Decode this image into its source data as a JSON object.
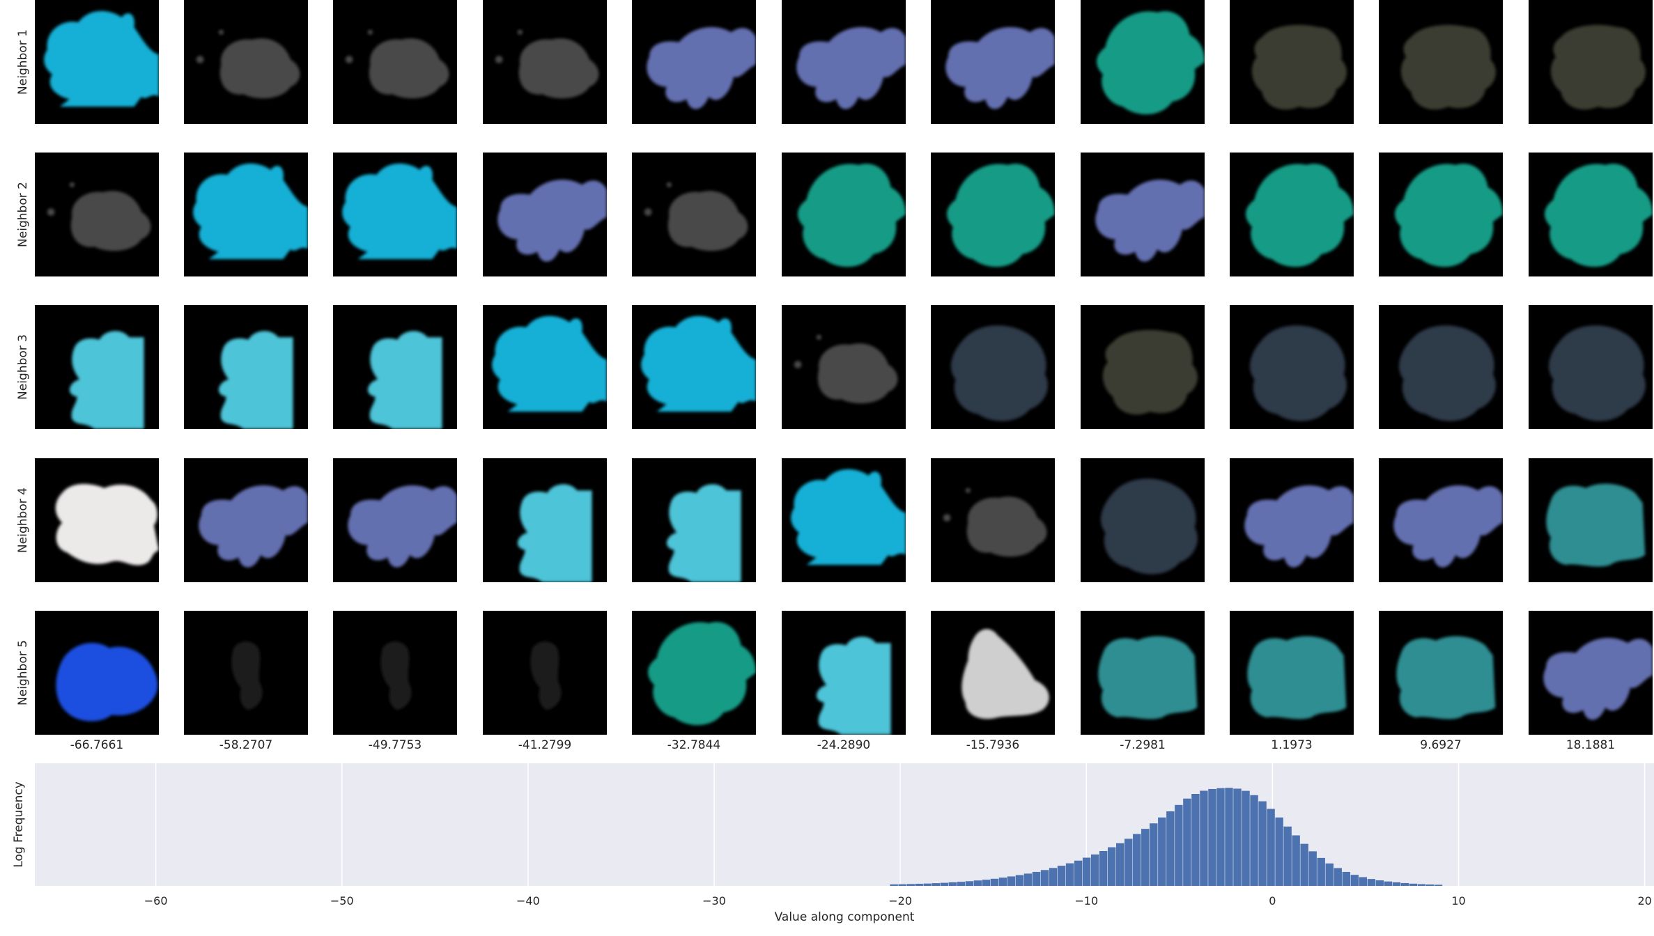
{
  "rows": [
    "Neighbor 1",
    "Neighbor 2",
    "Neighbor 3",
    "Neighbor 4",
    "Neighbor 5"
  ],
  "columns": [
    "-66.7661",
    "-58.2707",
    "-49.7753",
    "-41.2799",
    "-32.7844",
    "-24.2890",
    "-15.7936",
    "-7.2981",
    "1.1973",
    "9.6927",
    "18.1881"
  ],
  "tiles": [
    [
      "cyan-blob",
      "gray-smudge",
      "gray-smudge",
      "gray-smudge",
      "periwinkle-splat",
      "periwinkle-splat",
      "periwinkle-splat",
      "teal-leaf",
      "olive-blob",
      "olive-blob",
      "olive-blob"
    ],
    [
      "gray-smudge",
      "cyan-blob",
      "cyan-blob",
      "periwinkle-splat",
      "gray-smudge",
      "teal-leaf",
      "teal-leaf",
      "periwinkle-splat",
      "teal-leaf",
      "teal-leaf",
      "teal-leaf"
    ],
    [
      "lightblue-fish",
      "lightblue-fish",
      "lightblue-fish",
      "cyan-blob",
      "cyan-blob",
      "gray-smudge",
      "slate-blob",
      "olive-blob",
      "slate-blob",
      "slate-blob",
      "slate-blob"
    ],
    [
      "white-blob",
      "periwinkle-splat",
      "periwinkle-splat",
      "lightblue-fish",
      "lightblue-fish",
      "cyan-blob",
      "gray-smudge",
      "slate-blob",
      "periwinkle-splat",
      "periwinkle-splat",
      "aqua-patch"
    ],
    [
      "blue-shape",
      "dark-faint",
      "dark-faint",
      "dark-faint",
      "teal-leaf",
      "lightblue-fish",
      "silver-blob",
      "aqua-patch",
      "aqua-patch",
      "aqua-patch",
      "periwinkle-splat"
    ]
  ],
  "tile_colors": {
    "cyan-blob": "#16b0d6",
    "gray-smudge": "#4a4a4a",
    "periwinkle-splat": "#6470b0",
    "teal-leaf": "#129c86",
    "olive-blob": "#3b3c32",
    "lightblue-fish": "#4ec4d8",
    "slate-blob": "#2e3a48",
    "white-blob": "#ece9e9",
    "blue-shape": "#1c4fe0",
    "dark-faint": "#1b1b1b",
    "silver-blob": "#cfcfcf",
    "aqua-patch": "#2f8e92"
  },
  "chart_data": {
    "type": "bar",
    "xlabel": "Value along component",
    "ylabel": "Log Frequency",
    "xlim": [
      -66.5,
      20.5
    ],
    "xticks": [
      -60,
      -50,
      -40,
      -30,
      -20,
      -10,
      0,
      10,
      20
    ],
    "xtick_labels": [
      "−60",
      "−50",
      "−40",
      "−30",
      "−20",
      "−10",
      "0",
      "10",
      "20"
    ],
    "ylim": [
      0,
      1
    ],
    "grid": true,
    "bar_color": "#4c72b0",
    "background": "#eaeaf2",
    "bin_width": 0.45,
    "bins": [
      {
        "x": -20.55,
        "v": 0.012
      },
      {
        "x": -20.1,
        "v": 0.013
      },
      {
        "x": -19.65,
        "v": 0.015
      },
      {
        "x": -19.2,
        "v": 0.017
      },
      {
        "x": -18.75,
        "v": 0.019
      },
      {
        "x": -18.3,
        "v": 0.022
      },
      {
        "x": -17.85,
        "v": 0.025
      },
      {
        "x": -17.4,
        "v": 0.029
      },
      {
        "x": -16.95,
        "v": 0.033
      },
      {
        "x": -16.5,
        "v": 0.038
      },
      {
        "x": -16.05,
        "v": 0.044
      },
      {
        "x": -15.6,
        "v": 0.05
      },
      {
        "x": -15.15,
        "v": 0.058
      },
      {
        "x": -14.7,
        "v": 0.067
      },
      {
        "x": -14.25,
        "v": 0.077
      },
      {
        "x": -13.8,
        "v": 0.088
      },
      {
        "x": -13.35,
        "v": 0.1
      },
      {
        "x": -12.9,
        "v": 0.114
      },
      {
        "x": -12.45,
        "v": 0.129
      },
      {
        "x": -12.0,
        "v": 0.146
      },
      {
        "x": -11.55,
        "v": 0.164
      },
      {
        "x": -11.1,
        "v": 0.184
      },
      {
        "x": -10.65,
        "v": 0.206
      },
      {
        "x": -10.2,
        "v": 0.23
      },
      {
        "x": -9.75,
        "v": 0.256
      },
      {
        "x": -9.3,
        "v": 0.284
      },
      {
        "x": -8.85,
        "v": 0.315
      },
      {
        "x": -8.4,
        "v": 0.348
      },
      {
        "x": -7.95,
        "v": 0.384
      },
      {
        "x": -7.5,
        "v": 0.423
      },
      {
        "x": -7.05,
        "v": 0.465
      },
      {
        "x": -6.6,
        "v": 0.51
      },
      {
        "x": -6.15,
        "v": 0.558
      },
      {
        "x": -5.7,
        "v": 0.608
      },
      {
        "x": -5.25,
        "v": 0.66
      },
      {
        "x": -4.8,
        "v": 0.712
      },
      {
        "x": -4.35,
        "v": 0.75
      },
      {
        "x": -3.9,
        "v": 0.776
      },
      {
        "x": -3.45,
        "v": 0.79
      },
      {
        "x": -3.0,
        "v": 0.797
      },
      {
        "x": -2.55,
        "v": 0.8
      },
      {
        "x": -2.1,
        "v": 0.793
      },
      {
        "x": -1.65,
        "v": 0.775
      },
      {
        "x": -1.2,
        "v": 0.74
      },
      {
        "x": -0.75,
        "v": 0.69
      },
      {
        "x": -0.3,
        "v": 0.628
      },
      {
        "x": 0.15,
        "v": 0.558
      },
      {
        "x": 0.6,
        "v": 0.484
      },
      {
        "x": 1.05,
        "v": 0.412
      },
      {
        "x": 1.5,
        "v": 0.343
      },
      {
        "x": 1.95,
        "v": 0.282
      },
      {
        "x": 2.4,
        "v": 0.228
      },
      {
        "x": 2.85,
        "v": 0.183
      },
      {
        "x": 3.3,
        "v": 0.145
      },
      {
        "x": 3.75,
        "v": 0.114
      },
      {
        "x": 4.2,
        "v": 0.09
      },
      {
        "x": 4.65,
        "v": 0.071
      },
      {
        "x": 5.1,
        "v": 0.056
      },
      {
        "x": 5.55,
        "v": 0.045
      },
      {
        "x": 6.0,
        "v": 0.036
      },
      {
        "x": 6.45,
        "v": 0.029
      },
      {
        "x": 6.9,
        "v": 0.023
      },
      {
        "x": 7.35,
        "v": 0.018
      },
      {
        "x": 7.8,
        "v": 0.014
      },
      {
        "x": 8.25,
        "v": 0.011
      },
      {
        "x": 8.7,
        "v": 0.009
      }
    ]
  }
}
